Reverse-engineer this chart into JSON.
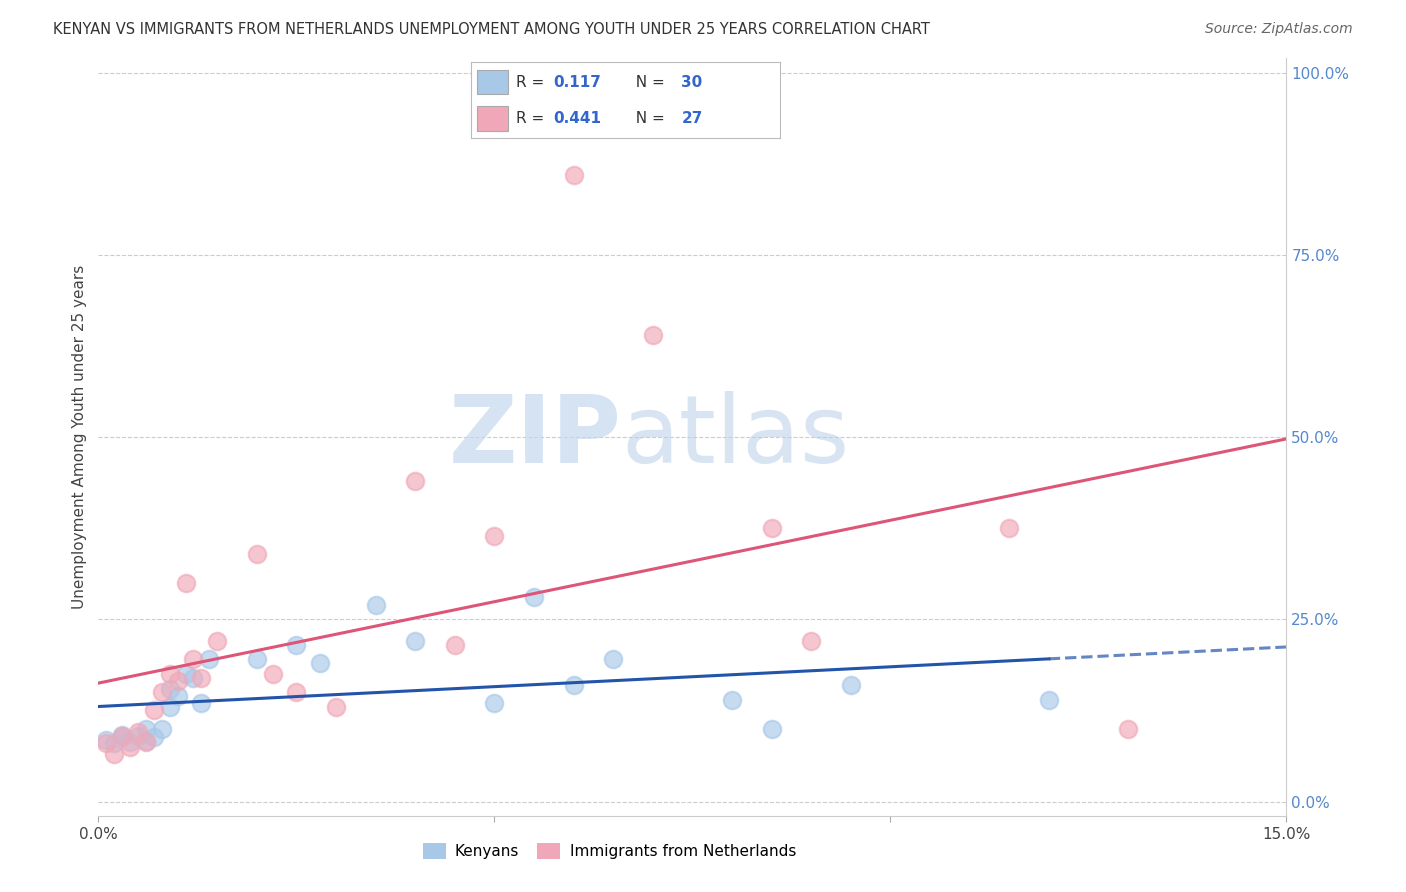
{
  "title": "KENYAN VS IMMIGRANTS FROM NETHERLANDS UNEMPLOYMENT AMONG YOUTH UNDER 25 YEARS CORRELATION CHART",
  "source": "Source: ZipAtlas.com",
  "ylabel": "Unemployment Among Youth under 25 years",
  "xlim": [
    0.0,
    0.15
  ],
  "ylim": [
    -0.02,
    1.02
  ],
  "right_yticks": [
    0.0,
    0.25,
    0.5,
    0.75,
    1.0
  ],
  "right_yticklabels": [
    "0.0%",
    "25.0%",
    "50.0%",
    "75.0%",
    "100.0%"
  ],
  "r_kenyan": 0.117,
  "n_kenyan": 30,
  "r_netherlands": 0.441,
  "n_netherlands": 27,
  "color_kenyan": "#a8c8e8",
  "color_netherlands": "#f0a8b8",
  "color_line_kenyan": "#2255aa",
  "color_line_netherlands": "#dd5577",
  "watermark_zip": "ZIP",
  "watermark_atlas": "atlas",
  "background_color": "#ffffff",
  "kenyan_x": [
    0.001,
    0.002,
    0.003,
    0.003,
    0.004,
    0.005,
    0.006,
    0.006,
    0.007,
    0.008,
    0.009,
    0.009,
    0.01,
    0.011,
    0.012,
    0.013,
    0.014,
    0.02,
    0.025,
    0.028,
    0.035,
    0.04,
    0.05,
    0.055,
    0.06,
    0.065,
    0.08,
    0.085,
    0.095,
    0.12
  ],
  "kenyan_y": [
    0.085,
    0.08,
    0.088,
    0.092,
    0.082,
    0.09,
    0.1,
    0.083,
    0.088,
    0.1,
    0.155,
    0.13,
    0.145,
    0.175,
    0.17,
    0.135,
    0.195,
    0.195,
    0.215,
    0.19,
    0.27,
    0.22,
    0.135,
    0.28,
    0.16,
    0.195,
    0.14,
    0.1,
    0.16,
    0.14
  ],
  "netherlands_x": [
    0.001,
    0.002,
    0.003,
    0.004,
    0.005,
    0.006,
    0.007,
    0.008,
    0.009,
    0.01,
    0.011,
    0.012,
    0.013,
    0.015,
    0.02,
    0.022,
    0.025,
    0.03,
    0.04,
    0.045,
    0.05,
    0.06,
    0.07,
    0.085,
    0.09,
    0.115,
    0.13
  ],
  "netherlands_y": [
    0.08,
    0.065,
    0.09,
    0.075,
    0.095,
    0.082,
    0.125,
    0.15,
    0.175,
    0.165,
    0.3,
    0.195,
    0.17,
    0.22,
    0.34,
    0.175,
    0.15,
    0.13,
    0.44,
    0.215,
    0.365,
    0.86,
    0.64,
    0.375,
    0.22,
    0.375,
    0.1
  ]
}
